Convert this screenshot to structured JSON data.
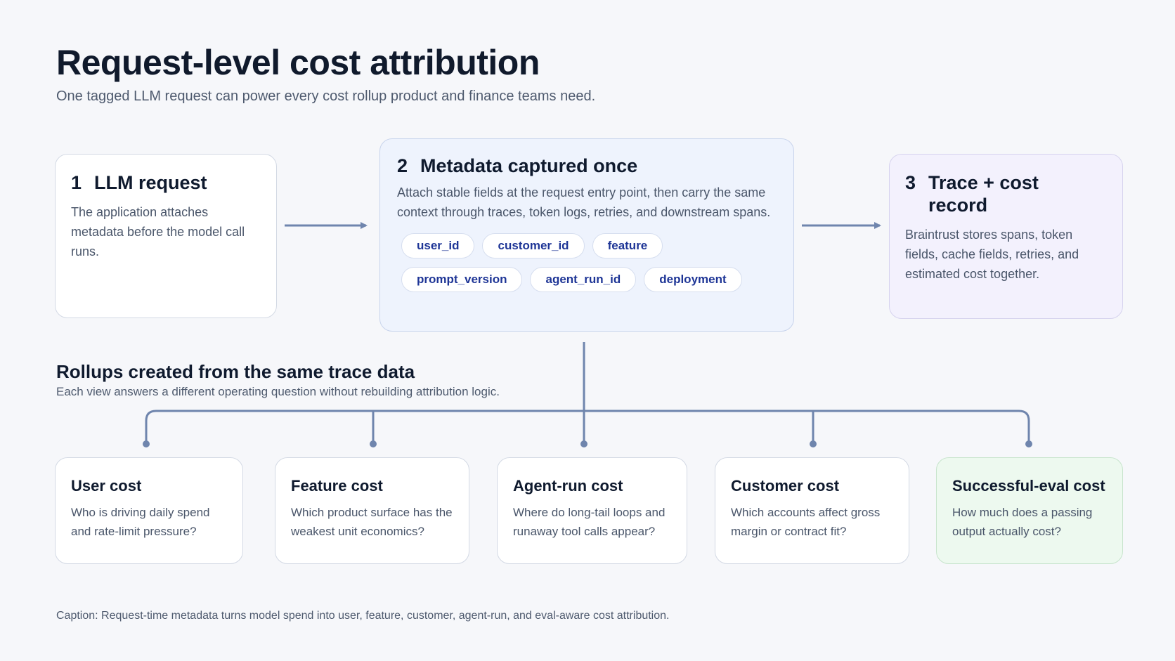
{
  "title": "Request-level cost attribution",
  "subtitle": "One tagged LLM request can power every cost rollup product and finance teams need.",
  "steps": [
    {
      "num": "1",
      "title": "LLM request",
      "body": "The application attaches metadata before the model call runs."
    },
    {
      "num": "2",
      "title": "Metadata captured once",
      "body": "Attach stable fields at the request entry point, then carry the same context through traces, token logs, retries, and downstream spans."
    },
    {
      "num": "3",
      "title": "Trace + cost record",
      "body": "Braintrust stores spans, token fields, cache fields, retries, and estimated cost together."
    }
  ],
  "metadata_fields": [
    "user_id",
    "customer_id",
    "feature",
    "prompt_version",
    "agent_run_id",
    "deployment"
  ],
  "rollups_section": {
    "title": "Rollups created from the same trace data",
    "subtitle": "Each view answers a different operating question without rebuilding attribution logic."
  },
  "rollups": [
    {
      "title": "User cost",
      "question": "Who is driving daily spend and rate-limit pressure?"
    },
    {
      "title": "Feature cost",
      "question": "Which product surface has the weakest unit economics?"
    },
    {
      "title": "Agent-run cost",
      "question": "Where do long-tail loops and runaway tool calls appear?"
    },
    {
      "title": "Customer cost",
      "question": "Which accounts affect gross margin or contract fit?"
    },
    {
      "title": "Successful-eval cost",
      "question": "How much does a passing output actually cost?"
    }
  ],
  "caption": "Caption: Request-time metadata turns model spend into user, feature, customer, agent-run, and eval-aware cost attribution.",
  "colors": {
    "connector": "#6f85ad",
    "chip_text": "#1e3596",
    "success_card": "#edf9ef",
    "metadata_card": "#eef3fd",
    "record_card": "#f3f1fd"
  }
}
